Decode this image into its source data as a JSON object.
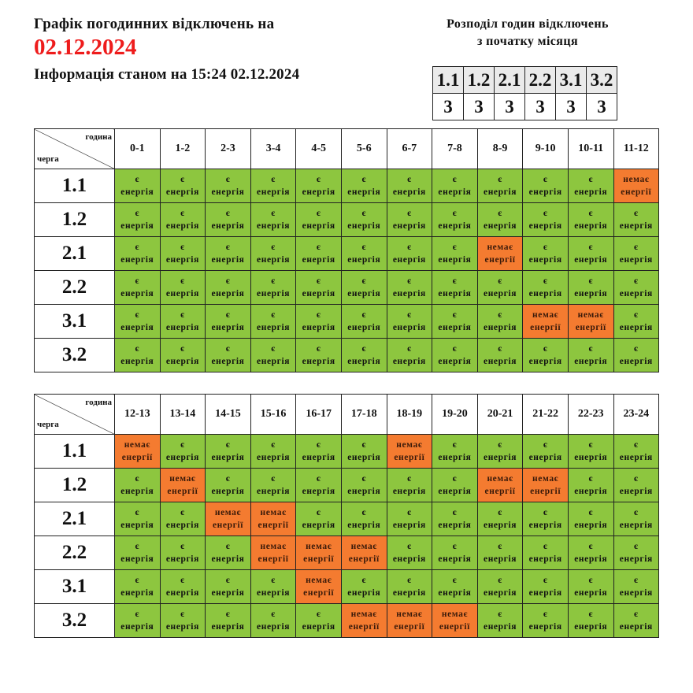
{
  "header": {
    "title": "Графік погодинних відключень на",
    "date": "02.12.2024",
    "info": "Інформація станом на 15:24 02.12.2024"
  },
  "summary": {
    "title_line1": "Розподіл годин відключень",
    "title_line2": "з початку місяця",
    "queues": [
      "1.1",
      "1.2",
      "2.1",
      "2.2",
      "3.1",
      "3.2"
    ],
    "hours": [
      "3",
      "3",
      "3",
      "3",
      "3",
      "3"
    ]
  },
  "labels": {
    "corner_hour": "година",
    "corner_queue": "черга",
    "on_line1": "є",
    "on_line2": "енергія",
    "off_line1": "немає",
    "off_line2": "енергії"
  },
  "colors": {
    "on": "#8dc63f",
    "off": "#f47b30",
    "date": "#ee1c1c"
  },
  "tables": [
    {
      "hours": [
        "0-1",
        "1-2",
        "2-3",
        "3-4",
        "4-5",
        "5-6",
        "6-7",
        "7-8",
        "8-9",
        "9-10",
        "10-11",
        "11-12"
      ],
      "rows": [
        {
          "queue": "1.1",
          "slots": [
            "on",
            "on",
            "on",
            "on",
            "on",
            "on",
            "on",
            "on",
            "on",
            "on",
            "on",
            "off"
          ]
        },
        {
          "queue": "1.2",
          "slots": [
            "on",
            "on",
            "on",
            "on",
            "on",
            "on",
            "on",
            "on",
            "on",
            "on",
            "on",
            "on"
          ]
        },
        {
          "queue": "2.1",
          "slots": [
            "on",
            "on",
            "on",
            "on",
            "on",
            "on",
            "on",
            "on",
            "off",
            "on",
            "on",
            "on"
          ]
        },
        {
          "queue": "2.2",
          "slots": [
            "on",
            "on",
            "on",
            "on",
            "on",
            "on",
            "on",
            "on",
            "on",
            "on",
            "on",
            "on"
          ]
        },
        {
          "queue": "3.1",
          "slots": [
            "on",
            "on",
            "on",
            "on",
            "on",
            "on",
            "on",
            "on",
            "on",
            "off",
            "off",
            "on"
          ]
        },
        {
          "queue": "3.2",
          "slots": [
            "on",
            "on",
            "on",
            "on",
            "on",
            "on",
            "on",
            "on",
            "on",
            "on",
            "on",
            "on"
          ]
        }
      ]
    },
    {
      "hours": [
        "12-13",
        "13-14",
        "14-15",
        "15-16",
        "16-17",
        "17-18",
        "18-19",
        "19-20",
        "20-21",
        "21-22",
        "22-23",
        "23-24"
      ],
      "rows": [
        {
          "queue": "1.1",
          "slots": [
            "off",
            "on",
            "on",
            "on",
            "on",
            "on",
            "off",
            "on",
            "on",
            "on",
            "on",
            "on"
          ]
        },
        {
          "queue": "1.2",
          "slots": [
            "on",
            "off",
            "on",
            "on",
            "on",
            "on",
            "on",
            "on",
            "off",
            "off",
            "on",
            "on"
          ]
        },
        {
          "queue": "2.1",
          "slots": [
            "on",
            "on",
            "off",
            "off",
            "on",
            "on",
            "on",
            "on",
            "on",
            "on",
            "on",
            "on"
          ]
        },
        {
          "queue": "2.2",
          "slots": [
            "on",
            "on",
            "on",
            "off",
            "off",
            "off",
            "on",
            "on",
            "on",
            "on",
            "on",
            "on"
          ]
        },
        {
          "queue": "3.1",
          "slots": [
            "on",
            "on",
            "on",
            "on",
            "off",
            "on",
            "on",
            "on",
            "on",
            "on",
            "on",
            "on"
          ]
        },
        {
          "queue": "3.2",
          "slots": [
            "on",
            "on",
            "on",
            "on",
            "on",
            "off",
            "off",
            "off",
            "on",
            "on",
            "on",
            "on"
          ]
        }
      ]
    }
  ]
}
